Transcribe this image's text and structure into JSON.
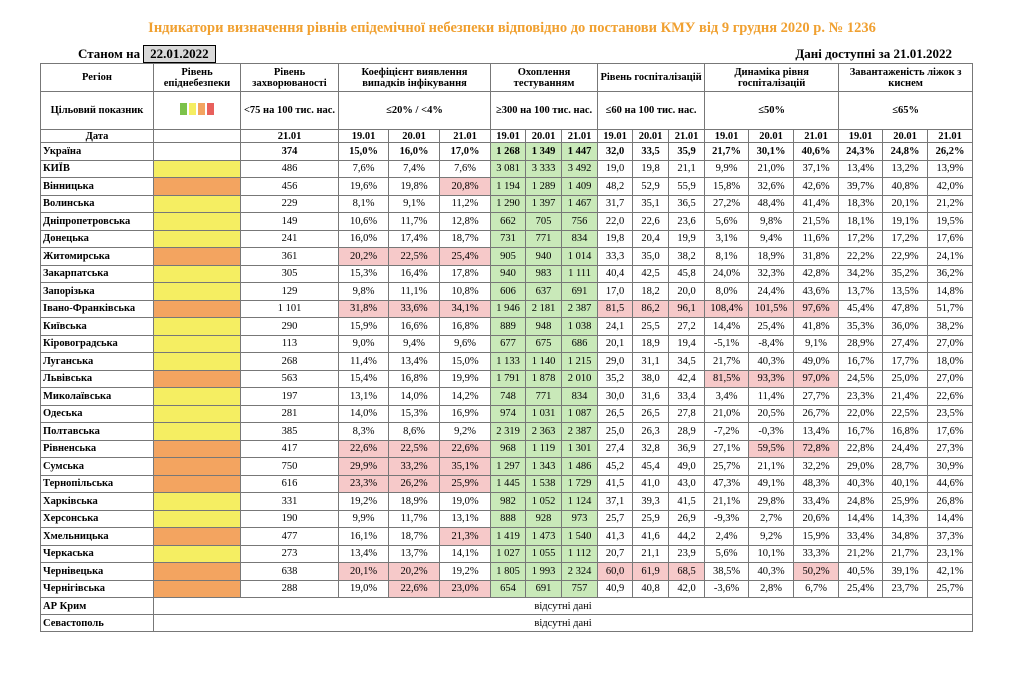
{
  "title": "Індикатори визначення рівнів епідемічної небезпеки відповідно до постанови КМУ від 9 грудня 2020 р. № 1236",
  "as_of_label": "Станом на",
  "as_of_date": "22.01.2022",
  "available": "Дані доступні за 21.01.2022",
  "header": {
    "row1": [
      "Регіон",
      "Рівень епіднебезпеки",
      "Рівень захворюваності",
      "Коефіцієнт виявлення випадків інфікування",
      "Охоплення тестуванням",
      "Рівень госпіталізацій",
      "Динаміка рівня госпіталізацій",
      "Завантаженість ліжок з киснем"
    ],
    "row2": [
      "Цільовий показник",
      "<75 на 100 тис. нас.",
      "≤20% / <4%",
      "≥300 на 100 тис. нас.",
      "≤60 на 100 тис. нас.",
      "≤50%",
      "≤65%"
    ],
    "row3": [
      "Дата",
      "21.01",
      "19.01",
      "20.01",
      "21.01",
      "19.01",
      "20.01",
      "21.01",
      "19.01",
      "20.01",
      "21.01",
      "19.01",
      "20.01",
      "21.01",
      "19.01",
      "20.01",
      "21.01"
    ]
  },
  "colors": {
    "yellow": "#f5ee62",
    "orange": "#f3a460",
    "red": "#f6c9c9",
    "green": "#c9e9b9"
  },
  "rows": [
    {
      "region": "Україна",
      "cells": [
        "374",
        "15,0%",
        "16,0%",
        "17,0%",
        "1 268",
        "1 349",
        "1 447",
        "32,0",
        "33,5",
        "35,9",
        "21,7%",
        "30,1%",
        "40,6%",
        "24,3%",
        "24,8%",
        "26,2%"
      ]
    },
    {
      "region": "КИЇВ",
      "level": "yellow",
      "cells": [
        "486",
        "7,6%",
        "7,4%",
        "7,6%",
        "3 081",
        "3 333",
        "3 492",
        "19,0",
        "19,8",
        "21,1",
        "9,9%",
        "21,0%",
        "37,1%",
        "13,4%",
        "13,2%",
        "13,9%"
      ]
    },
    {
      "region": "Вінницька",
      "level": "orange",
      "red": [
        3
      ],
      "cells": [
        "456",
        "19,6%",
        "19,8%",
        "20,8%",
        "1 194",
        "1 289",
        "1 409",
        "48,2",
        "52,9",
        "55,9",
        "15,8%",
        "32,6%",
        "42,6%",
        "39,7%",
        "40,8%",
        "42,0%"
      ]
    },
    {
      "region": "Волинська",
      "level": "yellow",
      "cells": [
        "229",
        "8,1%",
        "9,1%",
        "11,2%",
        "1 290",
        "1 397",
        "1 467",
        "31,7",
        "35,1",
        "36,5",
        "27,2%",
        "48,4%",
        "41,4%",
        "18,3%",
        "20,1%",
        "21,2%"
      ]
    },
    {
      "region": "Дніпропетровська",
      "level": "yellow",
      "cells": [
        "149",
        "10,6%",
        "11,7%",
        "12,8%",
        "662",
        "705",
        "756",
        "22,0",
        "22,6",
        "23,6",
        "5,6%",
        "9,8%",
        "21,5%",
        "18,1%",
        "19,1%",
        "19,5%"
      ]
    },
    {
      "region": "Донецька",
      "level": "yellow",
      "cells": [
        "241",
        "16,0%",
        "17,4%",
        "18,7%",
        "731",
        "771",
        "834",
        "19,8",
        "20,4",
        "19,9",
        "3,1%",
        "9,4%",
        "11,6%",
        "17,2%",
        "17,2%",
        "17,6%"
      ]
    },
    {
      "region": "Житомирська",
      "level": "orange",
      "red": [
        1,
        2,
        3
      ],
      "cells": [
        "361",
        "20,2%",
        "22,5%",
        "25,4%",
        "905",
        "940",
        "1 014",
        "33,3",
        "35,0",
        "38,2",
        "8,1%",
        "18,9%",
        "31,8%",
        "22,2%",
        "22,9%",
        "24,1%"
      ]
    },
    {
      "region": "Закарпатська",
      "level": "yellow",
      "cells": [
        "305",
        "15,3%",
        "16,4%",
        "17,8%",
        "940",
        "983",
        "1 111",
        "40,4",
        "42,5",
        "45,8",
        "24,0%",
        "32,3%",
        "42,8%",
        "34,2%",
        "35,2%",
        "36,2%"
      ]
    },
    {
      "region": "Запорізька",
      "level": "yellow",
      "cells": [
        "129",
        "9,8%",
        "11,1%",
        "10,8%",
        "606",
        "637",
        "691",
        "17,0",
        "18,2",
        "20,0",
        "8,0%",
        "24,4%",
        "43,6%",
        "13,7%",
        "13,5%",
        "14,8%"
      ]
    },
    {
      "region": "Івано-Франківська",
      "level": "orange",
      "red": [
        1,
        2,
        3,
        7,
        8,
        9,
        10,
        11,
        12
      ],
      "cells": [
        "1 101",
        "31,8%",
        "33,6%",
        "34,1%",
        "1 946",
        "2 181",
        "2 387",
        "81,5",
        "86,2",
        "96,1",
        "108,4%",
        "101,5%",
        "97,6%",
        "45,4%",
        "47,8%",
        "51,7%"
      ]
    },
    {
      "region": "Київська",
      "level": "yellow",
      "cells": [
        "290",
        "15,9%",
        "16,6%",
        "16,8%",
        "889",
        "948",
        "1 038",
        "24,1",
        "25,5",
        "27,2",
        "14,4%",
        "25,4%",
        "41,8%",
        "35,3%",
        "36,0%",
        "38,2%"
      ]
    },
    {
      "region": "Кіровоградська",
      "level": "yellow",
      "cells": [
        "113",
        "9,0%",
        "9,4%",
        "9,6%",
        "677",
        "675",
        "686",
        "20,1",
        "18,9",
        "19,4",
        "-5,1%",
        "-8,4%",
        "9,1%",
        "28,9%",
        "27,4%",
        "27,0%"
      ]
    },
    {
      "region": "Луганська",
      "level": "yellow",
      "cells": [
        "268",
        "11,4%",
        "13,4%",
        "15,0%",
        "1 133",
        "1 140",
        "1 215",
        "29,0",
        "31,1",
        "34,5",
        "21,7%",
        "40,3%",
        "49,0%",
        "16,7%",
        "17,7%",
        "18,0%"
      ]
    },
    {
      "region": "Львівська",
      "level": "orange",
      "red": [
        10,
        11,
        12
      ],
      "cells": [
        "563",
        "15,4%",
        "16,8%",
        "19,9%",
        "1 791",
        "1 878",
        "2 010",
        "35,2",
        "38,0",
        "42,4",
        "81,5%",
        "93,3%",
        "97,0%",
        "24,5%",
        "25,0%",
        "27,0%"
      ]
    },
    {
      "region": "Миколаївська",
      "level": "yellow",
      "cells": [
        "197",
        "13,1%",
        "14,0%",
        "14,2%",
        "748",
        "771",
        "834",
        "30,0",
        "31,6",
        "33,4",
        "3,4%",
        "11,4%",
        "27,7%",
        "23,3%",
        "21,4%",
        "22,6%"
      ]
    },
    {
      "region": "Одеська",
      "level": "yellow",
      "cells": [
        "281",
        "14,0%",
        "15,3%",
        "16,9%",
        "974",
        "1 031",
        "1 087",
        "26,5",
        "26,5",
        "27,8",
        "21,0%",
        "20,5%",
        "26,7%",
        "22,0%",
        "22,5%",
        "23,5%"
      ]
    },
    {
      "region": "Полтавська",
      "level": "yellow",
      "cells": [
        "385",
        "8,3%",
        "8,6%",
        "9,2%",
        "2 319",
        "2 363",
        "2 387",
        "25,0",
        "26,3",
        "28,9",
        "-7,2%",
        "-0,3%",
        "13,4%",
        "16,7%",
        "16,8%",
        "17,6%"
      ]
    },
    {
      "region": "Рівненська",
      "level": "orange",
      "red": [
        1,
        2,
        3,
        11,
        12
      ],
      "cells": [
        "417",
        "22,6%",
        "22,5%",
        "22,6%",
        "968",
        "1 119",
        "1 301",
        "27,4",
        "32,8",
        "36,9",
        "27,1%",
        "59,5%",
        "72,8%",
        "22,8%",
        "24,4%",
        "27,3%"
      ]
    },
    {
      "region": "Сумська",
      "level": "orange",
      "red": [
        1,
        2,
        3
      ],
      "cells": [
        "750",
        "29,9%",
        "33,2%",
        "35,1%",
        "1 297",
        "1 343",
        "1 486",
        "45,2",
        "45,4",
        "49,0",
        "25,7%",
        "21,1%",
        "32,2%",
        "29,0%",
        "28,7%",
        "30,9%"
      ]
    },
    {
      "region": "Тернопільська",
      "level": "orange",
      "red": [
        1,
        2,
        3
      ],
      "cells": [
        "616",
        "23,3%",
        "26,2%",
        "25,9%",
        "1 445",
        "1 538",
        "1 729",
        "41,5",
        "41,0",
        "43,0",
        "47,3%",
        "49,1%",
        "48,3%",
        "40,3%",
        "40,1%",
        "44,6%"
      ]
    },
    {
      "region": "Харківська",
      "level": "yellow",
      "cells": [
        "331",
        "19,2%",
        "18,9%",
        "19,0%",
        "982",
        "1 052",
        "1 124",
        "37,1",
        "39,3",
        "41,5",
        "21,1%",
        "29,8%",
        "33,4%",
        "24,8%",
        "25,9%",
        "26,8%"
      ]
    },
    {
      "region": "Херсонська",
      "level": "yellow",
      "cells": [
        "190",
        "9,9%",
        "11,7%",
        "13,1%",
        "888",
        "928",
        "973",
        "25,7",
        "25,9",
        "26,9",
        "-9,3%",
        "2,7%",
        "20,6%",
        "14,4%",
        "14,3%",
        "14,4%"
      ]
    },
    {
      "region": "Хмельницька",
      "level": "orange",
      "red": [
        3
      ],
      "cells": [
        "477",
        "16,1%",
        "18,7%",
        "21,3%",
        "1 419",
        "1 473",
        "1 540",
        "41,3",
        "41,6",
        "44,2",
        "2,4%",
        "9,2%",
        "15,9%",
        "33,4%",
        "34,8%",
        "37,3%"
      ]
    },
    {
      "region": "Черкаська",
      "level": "yellow",
      "cells": [
        "273",
        "13,4%",
        "13,7%",
        "14,1%",
        "1 027",
        "1 055",
        "1 112",
        "20,7",
        "21,1",
        "23,9",
        "5,6%",
        "10,1%",
        "33,3%",
        "21,2%",
        "21,7%",
        "23,1%"
      ]
    },
    {
      "region": "Чернівецька",
      "level": "orange",
      "red": [
        1,
        2,
        7,
        8,
        9,
        12
      ],
      "cells": [
        "638",
        "20,1%",
        "20,2%",
        "19,2%",
        "1 805",
        "1 993",
        "2 324",
        "60,0",
        "61,9",
        "68,5",
        "38,5%",
        "40,3%",
        "50,2%",
        "40,5%",
        "39,1%",
        "42,1%"
      ]
    },
    {
      "region": "Чернігівська",
      "level": "orange",
      "red": [
        2,
        3
      ],
      "cells": [
        "288",
        "19,0%",
        "22,6%",
        "23,0%",
        "654",
        "691",
        "757",
        "40,9",
        "40,8",
        "42,0",
        "-3,6%",
        "2,8%",
        "6,7%",
        "25,4%",
        "23,7%",
        "25,7%"
      ]
    },
    {
      "region": "АР Крим",
      "note": "відсутні дані"
    },
    {
      "region": "Севастополь",
      "note": "відсутні дані"
    }
  ]
}
